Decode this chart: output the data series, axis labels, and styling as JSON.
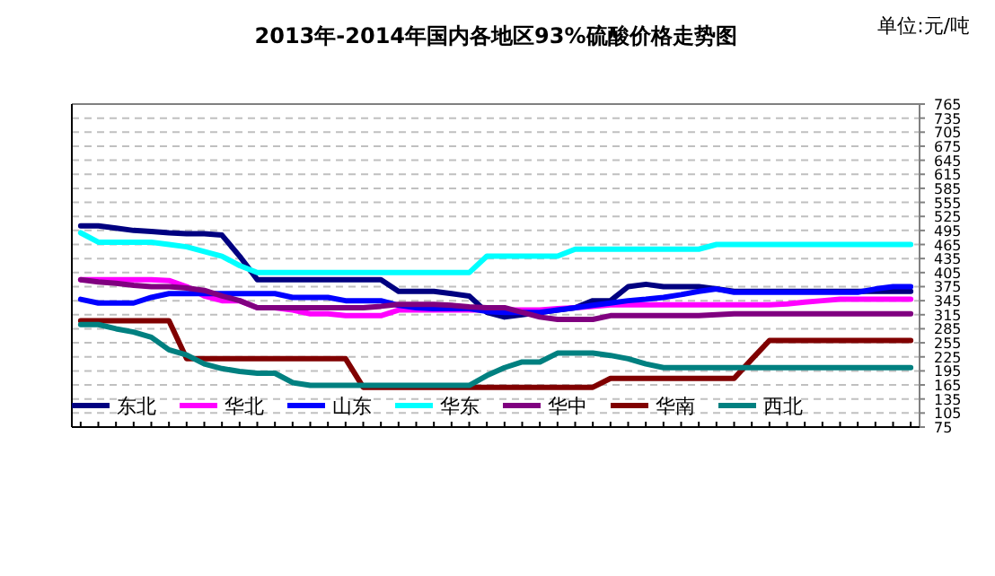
{
  "chart_data": {
    "type": "line",
    "title": "2013年-2014年国内各地区93%硫酸价格走势图",
    "annotations": [
      "单位:元/吨"
    ],
    "categories": [
      null,
      null,
      null,
      null,
      null,
      null,
      null,
      null,
      null,
      null,
      null,
      null,
      null,
      null,
      null,
      null,
      null,
      null,
      null,
      null,
      null,
      null,
      null,
      null,
      null,
      null,
      null,
      null,
      null,
      null,
      null,
      null,
      null,
      null,
      null,
      null,
      null,
      null,
      null,
      null,
      null,
      null,
      null,
      null,
      null,
      null,
      null,
      null
    ],
    "ylim": [
      75,
      765
    ],
    "yticks": [
      75,
      105,
      135,
      165,
      195,
      225,
      255,
      285,
      315,
      345,
      375,
      405,
      435,
      465,
      495,
      525,
      555,
      585,
      615,
      645,
      675,
      705,
      735,
      765
    ],
    "grid": "y",
    "legend": "bottom",
    "marker": "none",
    "line_style": "solid",
    "series": [
      {
        "name": "东北",
        "color": "#000080",
        "values": [
          505,
          505,
          500,
          495,
          493,
          490,
          488,
          488,
          485,
          440,
          390,
          390,
          390,
          390,
          390,
          390,
          390,
          390,
          365,
          365,
          365,
          360,
          355,
          320,
          310,
          315,
          320,
          325,
          330,
          345,
          345,
          375,
          380,
          375,
          375,
          375,
          370,
          365,
          365,
          365,
          365,
          365,
          365,
          365,
          365,
          365,
          365,
          365
        ]
      },
      {
        "name": "华北",
        "color": "#ff00ff",
        "values": [
          390,
          390,
          390,
          390,
          390,
          388,
          375,
          355,
          345,
          345,
          330,
          330,
          325,
          317,
          317,
          313,
          313,
          313,
          325,
          325,
          325,
          325,
          325,
          325,
          325,
          325,
          325,
          328,
          330,
          333,
          336,
          336,
          336,
          336,
          336,
          336,
          336,
          336,
          336,
          336,
          338,
          342,
          345,
          348,
          348,
          348,
          348,
          348
        ]
      },
      {
        "name": "山东",
        "color": "#0000ff",
        "values": [
          348,
          340,
          340,
          340,
          352,
          360,
          360,
          360,
          360,
          360,
          360,
          360,
          352,
          352,
          352,
          345,
          345,
          345,
          335,
          330,
          328,
          328,
          328,
          322,
          320,
          320,
          320,
          325,
          330,
          335,
          340,
          345,
          348,
          352,
          358,
          365,
          370,
          363,
          363,
          363,
          363,
          363,
          363,
          363,
          363,
          370,
          375,
          375
        ]
      },
      {
        "name": "华东",
        "color": "#00ffff",
        "values": [
          490,
          470,
          470,
          470,
          470,
          465,
          460,
          450,
          440,
          420,
          405,
          405,
          405,
          405,
          405,
          405,
          405,
          405,
          405,
          405,
          405,
          405,
          405,
          440,
          440,
          440,
          440,
          440,
          455,
          455,
          455,
          455,
          455,
          455,
          455,
          455,
          465,
          465,
          465,
          465,
          465,
          465,
          465,
          465,
          465,
          465,
          465,
          465
        ]
      },
      {
        "name": "华中",
        "color": "#800080",
        "values": [
          390,
          385,
          382,
          378,
          375,
          375,
          372,
          367,
          355,
          345,
          330,
          330,
          330,
          330,
          330,
          330,
          330,
          333,
          337,
          337,
          337,
          335,
          332,
          330,
          330,
          320,
          310,
          305,
          305,
          305,
          313,
          313,
          313,
          313,
          313,
          313,
          315,
          317,
          317,
          317,
          317,
          317,
          317,
          317,
          317,
          317,
          317,
          317
        ]
      },
      {
        "name": "华南",
        "color": "#800000",
        "values": [
          302,
          302,
          302,
          302,
          302,
          302,
          221,
          221,
          221,
          221,
          221,
          221,
          221,
          221,
          221,
          221,
          160,
          160,
          160,
          160,
          160,
          160,
          160,
          160,
          160,
          160,
          160,
          160,
          160,
          160,
          179,
          179,
          179,
          179,
          179,
          179,
          179,
          179,
          220,
          260,
          260,
          260,
          260,
          260,
          260,
          260,
          260,
          260
        ]
      },
      {
        "name": "西北",
        "color": "#008080",
        "values": [
          294,
          294,
          285,
          278,
          267,
          240,
          229,
          210,
          200,
          194,
          190,
          190,
          170,
          164,
          164,
          164,
          164,
          164,
          164,
          164,
          164,
          164,
          164,
          185,
          202,
          214,
          214,
          233,
          233,
          233,
          228,
          221,
          210,
          202,
          202,
          202,
          202,
          202,
          202,
          202,
          202,
          202,
          202,
          202,
          202,
          202,
          202,
          202
        ]
      }
    ]
  }
}
